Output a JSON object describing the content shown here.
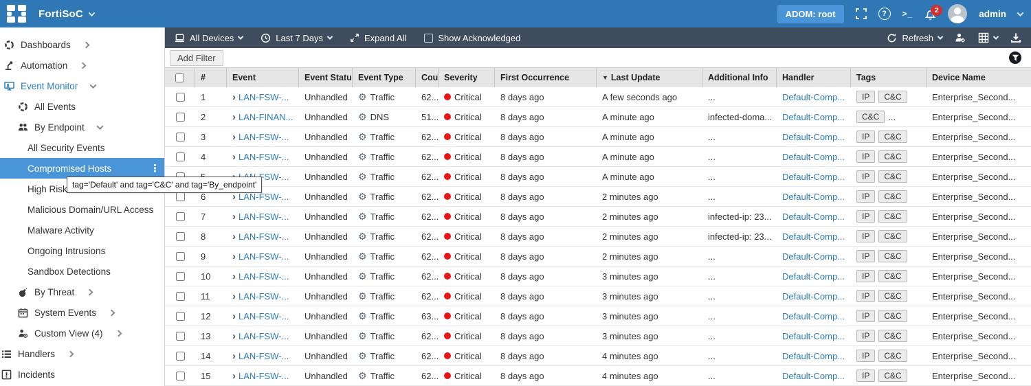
{
  "topbar": {
    "product": "FortiSoC",
    "adom_label": "ADOM: root",
    "terminal_glyph": ">_",
    "help_glyph": "?",
    "notification_count": "2",
    "username": "admin"
  },
  "toolbar": {
    "devices_label": "All Devices",
    "time_range_label": "Last 7 Days",
    "expand_all_label": "Expand All",
    "show_acknowledged_label": "Show Acknowledged",
    "refresh_label": "Refresh"
  },
  "filter_bar": {
    "add_filter_label": "Add Filter"
  },
  "sidebar": {
    "tooltip": "tag='Default' and tag='C&C' and tag='By_endpoint'",
    "kebab_glyph": "⋮",
    "items": [
      {
        "label": "Dashboards"
      },
      {
        "label": "Automation"
      },
      {
        "label": "Event Monitor"
      },
      {
        "label": "All Events"
      },
      {
        "label": "By Endpoint"
      },
      {
        "label": "All Security Events"
      },
      {
        "label": "Compromised Hosts"
      },
      {
        "label": "High Risk"
      },
      {
        "label": "Malicious Domain/URL Access"
      },
      {
        "label": "Malware Activity"
      },
      {
        "label": "Ongoing Intrusions"
      },
      {
        "label": "Sandbox Detections"
      },
      {
        "label": "By Threat"
      },
      {
        "label": "System Events"
      },
      {
        "label": "Custom View (4)"
      },
      {
        "label": "Handlers"
      },
      {
        "label": "Incidents"
      }
    ]
  },
  "table": {
    "sort_indicator": "▼",
    "gear_glyph": "⚙",
    "expand_glyph": "›",
    "columns": [
      "#",
      "Event",
      "Event Status",
      "Event Type",
      "Count",
      "Severity",
      "First Occurrence",
      "Last Update",
      "Additional Info",
      "Handler",
      "Tags",
      "Device Name"
    ],
    "rows": [
      {
        "num": "1",
        "event": "LAN-FSW-...",
        "status": "Unhandled",
        "type": "Traffic",
        "count": "62...",
        "severity": "Critical",
        "first": "8 days ago",
        "last": "A few seconds ago",
        "info": "...",
        "handler": "Default-Comp...",
        "tags": [
          "IP",
          "C&C"
        ],
        "tags_more": "",
        "device": "Enterprise_Second..."
      },
      {
        "num": "2",
        "event": "LAN-FINAN...",
        "status": "Unhandled",
        "type": "DNS",
        "count": "51...",
        "severity": "Critical",
        "first": "8 days ago",
        "last": "A minute ago",
        "info": "infected-doma...",
        "handler": "Default-Comp...",
        "tags": [
          "C&C"
        ],
        "tags_more": "...",
        "device": "Enterprise_Second..."
      },
      {
        "num": "3",
        "event": "LAN-FSW-...",
        "status": "Unhandled",
        "type": "Traffic",
        "count": "62...",
        "severity": "Critical",
        "first": "8 days ago",
        "last": "A minute ago",
        "info": "...",
        "handler": "Default-Comp...",
        "tags": [
          "IP",
          "C&C"
        ],
        "tags_more": "",
        "device": "Enterprise_Second..."
      },
      {
        "num": "4",
        "event": "LAN-FSW-...",
        "status": "Unhandled",
        "type": "Traffic",
        "count": "62...",
        "severity": "Critical",
        "first": "8 days ago",
        "last": "A minute ago",
        "info": "...",
        "handler": "Default-Comp...",
        "tags": [
          "IP",
          "C&C"
        ],
        "tags_more": "",
        "device": "Enterprise_Second..."
      },
      {
        "num": "5",
        "event": "LAN-FSW-...",
        "status": "Unhandled",
        "type": "Traffic",
        "count": "62...",
        "severity": "Critical",
        "first": "8 days ago",
        "last": "A minute ago",
        "info": "...",
        "handler": "Default-Comp...",
        "tags": [
          "IP",
          "C&C"
        ],
        "tags_more": "",
        "device": "Enterprise_Second..."
      },
      {
        "num": "6",
        "event": "LAN-FSW-...",
        "status": "Unhandled",
        "type": "Traffic",
        "count": "62...",
        "severity": "Critical",
        "first": "8 days ago",
        "last": "2 minutes ago",
        "info": "...",
        "handler": "Default-Comp...",
        "tags": [
          "IP",
          "C&C"
        ],
        "tags_more": "",
        "device": "Enterprise_Second..."
      },
      {
        "num": "7",
        "event": "LAN-FSW-...",
        "status": "Unhandled",
        "type": "Traffic",
        "count": "62...",
        "severity": "Critical",
        "first": "8 days ago",
        "last": "2 minutes ago",
        "info": "infected-ip: 23...",
        "handler": "Default-Comp...",
        "tags": [
          "IP",
          "C&C"
        ],
        "tags_more": "",
        "device": "Enterprise_Second..."
      },
      {
        "num": "8",
        "event": "LAN-FSW-...",
        "status": "Unhandled",
        "type": "Traffic",
        "count": "62...",
        "severity": "Critical",
        "first": "8 days ago",
        "last": "2 minutes ago",
        "info": "infected-ip: 23...",
        "handler": "Default-Comp...",
        "tags": [
          "IP",
          "C&C"
        ],
        "tags_more": "",
        "device": "Enterprise_Second..."
      },
      {
        "num": "9",
        "event": "LAN-FSW-...",
        "status": "Unhandled",
        "type": "Traffic",
        "count": "62...",
        "severity": "Critical",
        "first": "8 days ago",
        "last": "2 minutes ago",
        "info": "...",
        "handler": "Default-Comp...",
        "tags": [
          "IP",
          "C&C"
        ],
        "tags_more": "",
        "device": "Enterprise_Second..."
      },
      {
        "num": "10",
        "event": "LAN-FSW-...",
        "status": "Unhandled",
        "type": "Traffic",
        "count": "62...",
        "severity": "Critical",
        "first": "8 days ago",
        "last": "3 minutes ago",
        "info": "...",
        "handler": "Default-Comp...",
        "tags": [
          "IP",
          "C&C"
        ],
        "tags_more": "",
        "device": "Enterprise_Second..."
      },
      {
        "num": "11",
        "event": "LAN-FSW-...",
        "status": "Unhandled",
        "type": "Traffic",
        "count": "62...",
        "severity": "Critical",
        "first": "8 days ago",
        "last": "3 minutes ago",
        "info": "...",
        "handler": "Default-Comp...",
        "tags": [
          "IP",
          "C&C"
        ],
        "tags_more": "",
        "device": "Enterprise_Second..."
      },
      {
        "num": "12",
        "event": "LAN-FSW-...",
        "status": "Unhandled",
        "type": "Traffic",
        "count": "63...",
        "severity": "Critical",
        "first": "8 days ago",
        "last": "3 minutes ago",
        "info": "...",
        "handler": "Default-Comp...",
        "tags": [
          "IP",
          "C&C"
        ],
        "tags_more": "",
        "device": "Enterprise_Second..."
      },
      {
        "num": "13",
        "event": "LAN-FSW-...",
        "status": "Unhandled",
        "type": "Traffic",
        "count": "62...",
        "severity": "Critical",
        "first": "8 days ago",
        "last": "3 minutes ago",
        "info": "...",
        "handler": "Default-Comp...",
        "tags": [
          "IP",
          "C&C"
        ],
        "tags_more": "",
        "device": "Enterprise_Second..."
      },
      {
        "num": "14",
        "event": "LAN-FSW-...",
        "status": "Unhandled",
        "type": "Traffic",
        "count": "62...",
        "severity": "Critical",
        "first": "8 days ago",
        "last": "4 minutes ago",
        "info": "...",
        "handler": "Default-Comp...",
        "tags": [
          "IP",
          "C&C"
        ],
        "tags_more": "",
        "device": "Enterprise_Second..."
      },
      {
        "num": "15",
        "event": "LAN-FSW-...",
        "status": "Unhandled",
        "type": "Traffic",
        "count": "62...",
        "severity": "Critical",
        "first": "8 days ago",
        "last": "4 minutes ago",
        "info": "...",
        "handler": "Default-Comp...",
        "tags": [
          "IP",
          "C&C"
        ],
        "tags_more": "",
        "device": "Enterprise_Second..."
      }
    ]
  }
}
